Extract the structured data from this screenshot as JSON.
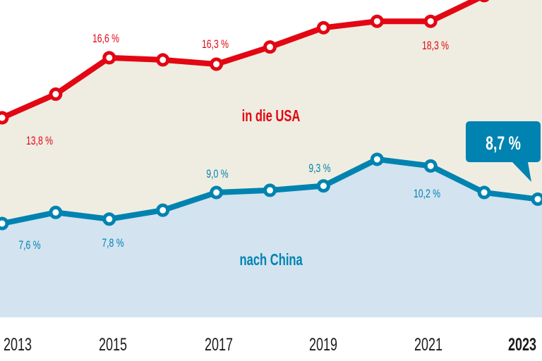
{
  "chart_data": {
    "type": "area",
    "categories": [
      "2013",
      "2014",
      "2015",
      "2016",
      "2017",
      "2018",
      "2019",
      "2020",
      "2021",
      "2022",
      "2023"
    ],
    "x_tick_labels": [
      "2013",
      "2015",
      "2017",
      "2019",
      "2021",
      "2023"
    ],
    "highlight_tick": "2023",
    "grid": false,
    "series": [
      {
        "name": "in die USA",
        "color": "#e30613",
        "fill": "#efede1",
        "values": [
          13.8,
          14.9,
          16.6,
          16.5,
          16.3,
          17.1,
          18.0,
          18.3,
          18.3,
          19.5,
          null
        ],
        "data_labels": [
          {
            "year": "2013",
            "text": "13,8"
          },
          {
            "year": "2015",
            "text": "16,6"
          },
          {
            "year": "2017",
            "text": "16,3"
          },
          {
            "year": "2021",
            "text": "18,3"
          }
        ]
      },
      {
        "name": "nach China",
        "color": "#0083b0",
        "fill": "#d3e3f0",
        "values": [
          7.6,
          8.1,
          7.8,
          8.2,
          9.0,
          9.1,
          9.3,
          10.5,
          10.2,
          9.0,
          8.7
        ],
        "data_labels": [
          {
            "year": "2013",
            "text": "7,6"
          },
          {
            "year": "2015",
            "text": "7,8"
          },
          {
            "year": "2017",
            "text": "9,0"
          },
          {
            "year": "2019",
            "text": "9,3"
          },
          {
            "year": "2021",
            "text": "10,2"
          }
        ],
        "callout": {
          "year": "2023",
          "text": "8,7 %"
        }
      }
    ],
    "unit": "%"
  }
}
